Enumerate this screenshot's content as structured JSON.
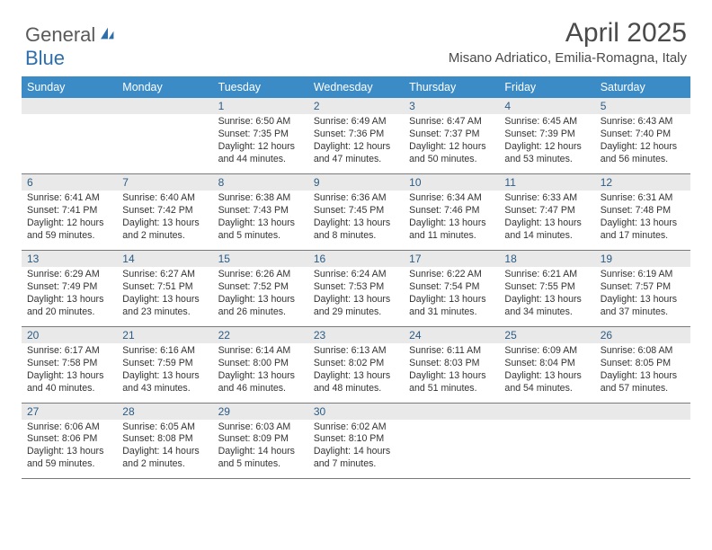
{
  "logo": {
    "general": "General",
    "blue": "Blue"
  },
  "title": "April 2025",
  "location": "Misano Adriatico, Emilia-Romagna, Italy",
  "colors": {
    "header_bg": "#3b8bc6",
    "header_text": "#ffffff",
    "num_strip_bg": "#e9e9e9",
    "num_text": "#2b5c86",
    "body_text": "#333333",
    "divider": "#7a7a7a",
    "logo_general": "#5a5a5a",
    "logo_blue": "#2e6fab"
  },
  "day_names": [
    "Sunday",
    "Monday",
    "Tuesday",
    "Wednesday",
    "Thursday",
    "Friday",
    "Saturday"
  ],
  "weeks": [
    [
      {
        "n": "",
        "sr": "",
        "ss": "",
        "dl": ""
      },
      {
        "n": "",
        "sr": "",
        "ss": "",
        "dl": ""
      },
      {
        "n": "1",
        "sr": "Sunrise: 6:50 AM",
        "ss": "Sunset: 7:35 PM",
        "dl": "Daylight: 12 hours and 44 minutes."
      },
      {
        "n": "2",
        "sr": "Sunrise: 6:49 AM",
        "ss": "Sunset: 7:36 PM",
        "dl": "Daylight: 12 hours and 47 minutes."
      },
      {
        "n": "3",
        "sr": "Sunrise: 6:47 AM",
        "ss": "Sunset: 7:37 PM",
        "dl": "Daylight: 12 hours and 50 minutes."
      },
      {
        "n": "4",
        "sr": "Sunrise: 6:45 AM",
        "ss": "Sunset: 7:39 PM",
        "dl": "Daylight: 12 hours and 53 minutes."
      },
      {
        "n": "5",
        "sr": "Sunrise: 6:43 AM",
        "ss": "Sunset: 7:40 PM",
        "dl": "Daylight: 12 hours and 56 minutes."
      }
    ],
    [
      {
        "n": "6",
        "sr": "Sunrise: 6:41 AM",
        "ss": "Sunset: 7:41 PM",
        "dl": "Daylight: 12 hours and 59 minutes."
      },
      {
        "n": "7",
        "sr": "Sunrise: 6:40 AM",
        "ss": "Sunset: 7:42 PM",
        "dl": "Daylight: 13 hours and 2 minutes."
      },
      {
        "n": "8",
        "sr": "Sunrise: 6:38 AM",
        "ss": "Sunset: 7:43 PM",
        "dl": "Daylight: 13 hours and 5 minutes."
      },
      {
        "n": "9",
        "sr": "Sunrise: 6:36 AM",
        "ss": "Sunset: 7:45 PM",
        "dl": "Daylight: 13 hours and 8 minutes."
      },
      {
        "n": "10",
        "sr": "Sunrise: 6:34 AM",
        "ss": "Sunset: 7:46 PM",
        "dl": "Daylight: 13 hours and 11 minutes."
      },
      {
        "n": "11",
        "sr": "Sunrise: 6:33 AM",
        "ss": "Sunset: 7:47 PM",
        "dl": "Daylight: 13 hours and 14 minutes."
      },
      {
        "n": "12",
        "sr": "Sunrise: 6:31 AM",
        "ss": "Sunset: 7:48 PM",
        "dl": "Daylight: 13 hours and 17 minutes."
      }
    ],
    [
      {
        "n": "13",
        "sr": "Sunrise: 6:29 AM",
        "ss": "Sunset: 7:49 PM",
        "dl": "Daylight: 13 hours and 20 minutes."
      },
      {
        "n": "14",
        "sr": "Sunrise: 6:27 AM",
        "ss": "Sunset: 7:51 PM",
        "dl": "Daylight: 13 hours and 23 minutes."
      },
      {
        "n": "15",
        "sr": "Sunrise: 6:26 AM",
        "ss": "Sunset: 7:52 PM",
        "dl": "Daylight: 13 hours and 26 minutes."
      },
      {
        "n": "16",
        "sr": "Sunrise: 6:24 AM",
        "ss": "Sunset: 7:53 PM",
        "dl": "Daylight: 13 hours and 29 minutes."
      },
      {
        "n": "17",
        "sr": "Sunrise: 6:22 AM",
        "ss": "Sunset: 7:54 PM",
        "dl": "Daylight: 13 hours and 31 minutes."
      },
      {
        "n": "18",
        "sr": "Sunrise: 6:21 AM",
        "ss": "Sunset: 7:55 PM",
        "dl": "Daylight: 13 hours and 34 minutes."
      },
      {
        "n": "19",
        "sr": "Sunrise: 6:19 AM",
        "ss": "Sunset: 7:57 PM",
        "dl": "Daylight: 13 hours and 37 minutes."
      }
    ],
    [
      {
        "n": "20",
        "sr": "Sunrise: 6:17 AM",
        "ss": "Sunset: 7:58 PM",
        "dl": "Daylight: 13 hours and 40 minutes."
      },
      {
        "n": "21",
        "sr": "Sunrise: 6:16 AM",
        "ss": "Sunset: 7:59 PM",
        "dl": "Daylight: 13 hours and 43 minutes."
      },
      {
        "n": "22",
        "sr": "Sunrise: 6:14 AM",
        "ss": "Sunset: 8:00 PM",
        "dl": "Daylight: 13 hours and 46 minutes."
      },
      {
        "n": "23",
        "sr": "Sunrise: 6:13 AM",
        "ss": "Sunset: 8:02 PM",
        "dl": "Daylight: 13 hours and 48 minutes."
      },
      {
        "n": "24",
        "sr": "Sunrise: 6:11 AM",
        "ss": "Sunset: 8:03 PM",
        "dl": "Daylight: 13 hours and 51 minutes."
      },
      {
        "n": "25",
        "sr": "Sunrise: 6:09 AM",
        "ss": "Sunset: 8:04 PM",
        "dl": "Daylight: 13 hours and 54 minutes."
      },
      {
        "n": "26",
        "sr": "Sunrise: 6:08 AM",
        "ss": "Sunset: 8:05 PM",
        "dl": "Daylight: 13 hours and 57 minutes."
      }
    ],
    [
      {
        "n": "27",
        "sr": "Sunrise: 6:06 AM",
        "ss": "Sunset: 8:06 PM",
        "dl": "Daylight: 13 hours and 59 minutes."
      },
      {
        "n": "28",
        "sr": "Sunrise: 6:05 AM",
        "ss": "Sunset: 8:08 PM",
        "dl": "Daylight: 14 hours and 2 minutes."
      },
      {
        "n": "29",
        "sr": "Sunrise: 6:03 AM",
        "ss": "Sunset: 8:09 PM",
        "dl": "Daylight: 14 hours and 5 minutes."
      },
      {
        "n": "30",
        "sr": "Sunrise: 6:02 AM",
        "ss": "Sunset: 8:10 PM",
        "dl": "Daylight: 14 hours and 7 minutes."
      },
      {
        "n": "",
        "sr": "",
        "ss": "",
        "dl": ""
      },
      {
        "n": "",
        "sr": "",
        "ss": "",
        "dl": ""
      },
      {
        "n": "",
        "sr": "",
        "ss": "",
        "dl": ""
      }
    ]
  ]
}
